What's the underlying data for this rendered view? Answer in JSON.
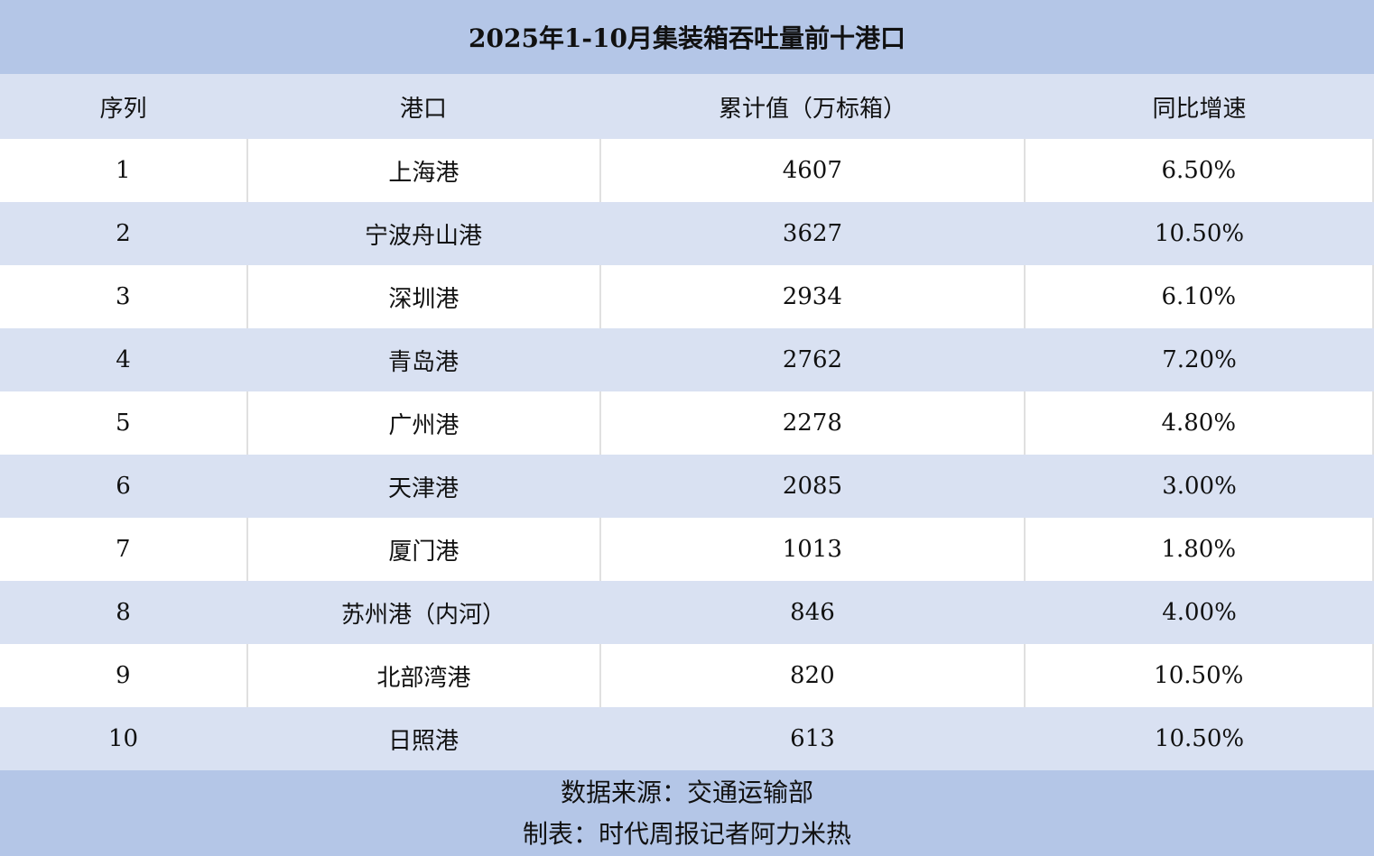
{
  "chart_data": {
    "type": "table",
    "title": "2025年1-10月集装箱吞吐量前十港口",
    "columns": [
      "序列",
      "港口",
      "累计值（万标箱）",
      "同比增速"
    ],
    "rows": [
      [
        "1",
        "上海港",
        "4607",
        "6.50%"
      ],
      [
        "2",
        "宁波舟山港",
        "3627",
        "10.50%"
      ],
      [
        "3",
        "深圳港",
        "2934",
        "6.10%"
      ],
      [
        "4",
        "青岛港",
        "2762",
        "7.20%"
      ],
      [
        "5",
        "广州港",
        "2278",
        "4.80%"
      ],
      [
        "6",
        "天津港",
        "2085",
        "3.00%"
      ],
      [
        "7",
        "厦门港",
        "1013",
        "1.80%"
      ],
      [
        "8",
        "苏州港（内河）",
        "846",
        "4.00%"
      ],
      [
        "9",
        "北部湾港",
        "820",
        "10.50%"
      ],
      [
        "10",
        "日照港",
        "613",
        "10.50%"
      ]
    ],
    "source": "数据来源：交通运输部",
    "credit": "制表：时代周报记者阿力米热"
  },
  "colors": {
    "title_bg": "#b4c6e7",
    "stripe_bg": "#d9e1f2"
  }
}
